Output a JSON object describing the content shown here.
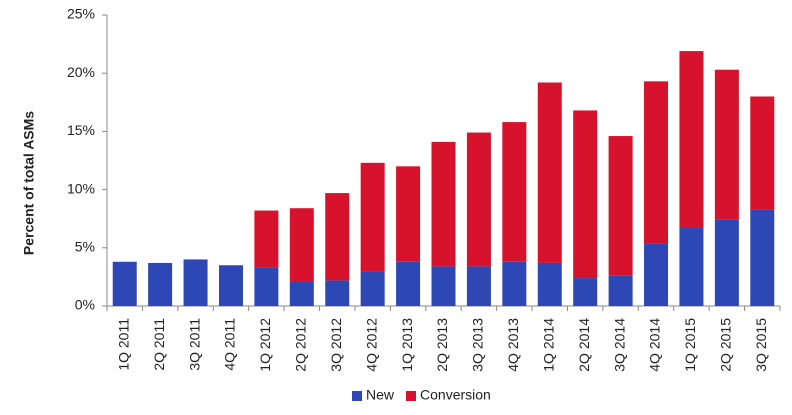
{
  "chart_data": {
    "type": "stacked_bar",
    "y_label": "Percent of total ASMs",
    "categories": [
      "1Q 2011",
      "2Q 2011",
      "3Q 2011",
      "4Q 2011",
      "1Q 2012",
      "2Q 2012",
      "3Q 2012",
      "4Q 2012",
      "1Q 2013",
      "2Q 2013",
      "3Q 2013",
      "4Q 2013",
      "1Q 2014",
      "2Q 2014",
      "3Q 2014",
      "4Q 2014",
      "1Q 2015",
      "2Q 2015",
      "3Q 2015"
    ],
    "series": [
      {
        "name": "New",
        "color": "#2d48b4",
        "values": [
          3.8,
          3.7,
          4.0,
          3.5,
          3.3,
          2.1,
          2.2,
          3.0,
          3.8,
          3.4,
          3.4,
          3.8,
          3.7,
          2.4,
          2.6,
          5.4,
          6.7,
          7.4,
          8.3
        ]
      },
      {
        "name": "Conversion",
        "color": "#d7122c",
        "values": [
          0,
          0,
          0,
          0,
          4.9,
          6.3,
          7.5,
          9.3,
          8.2,
          10.7,
          11.5,
          12.0,
          15.5,
          14.4,
          12.0,
          13.9,
          15.2,
          12.9,
          9.7
        ]
      }
    ],
    "ylim": [
      0,
      25
    ],
    "yticks": [
      {
        "value": 0,
        "label": "0%"
      },
      {
        "value": 5,
        "label": "5%"
      },
      {
        "value": 10,
        "label": "10%"
      },
      {
        "value": 15,
        "label": "15%"
      },
      {
        "value": 20,
        "label": "20%"
      },
      {
        "value": 25,
        "label": "25%"
      }
    ],
    "legend": "bottom"
  }
}
